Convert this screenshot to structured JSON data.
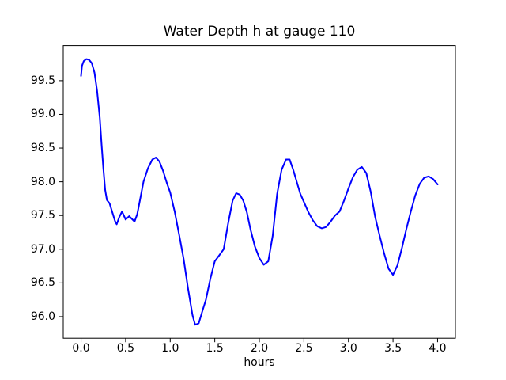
{
  "figure": {
    "background_color": "#ffffff",
    "spine_color": "#000000",
    "text_color": "#000000"
  },
  "chart_data": {
    "type": "line",
    "title": "Water Depth h at gauge 110",
    "xlabel": "hours",
    "ylabel": "",
    "grid": false,
    "legend": null,
    "xlim": [
      -0.2,
      4.2
    ],
    "ylim": [
      95.68,
      100.02
    ],
    "xticks": [
      0.0,
      0.5,
      1.0,
      1.5,
      2.0,
      2.5,
      3.0,
      3.5,
      4.0
    ],
    "yticks": [
      96.0,
      96.5,
      97.0,
      97.5,
      98.0,
      98.5,
      99.0,
      99.5
    ],
    "series": [
      {
        "name": "water-depth",
        "color": "#0000ff",
        "x": [
          0.0,
          0.01,
          0.03,
          0.06,
          0.09,
          0.12,
          0.15,
          0.18,
          0.21,
          0.23,
          0.25,
          0.27,
          0.29,
          0.32,
          0.35,
          0.38,
          0.4,
          0.43,
          0.46,
          0.5,
          0.54,
          0.57,
          0.6,
          0.63,
          0.66,
          0.7,
          0.75,
          0.8,
          0.84,
          0.88,
          0.92,
          0.96,
          1.0,
          1.05,
          1.1,
          1.15,
          1.2,
          1.25,
          1.28,
          1.32,
          1.36,
          1.4,
          1.45,
          1.5,
          1.55,
          1.6,
          1.65,
          1.7,
          1.74,
          1.78,
          1.82,
          1.86,
          1.9,
          1.95,
          2.0,
          2.05,
          2.1,
          2.15,
          2.2,
          2.25,
          2.3,
          2.34,
          2.38,
          2.42,
          2.46,
          2.5,
          2.55,
          2.6,
          2.65,
          2.7,
          2.75,
          2.8,
          2.85,
          2.9,
          2.95,
          3.0,
          3.05,
          3.1,
          3.15,
          3.2,
          3.25,
          3.3,
          3.35,
          3.4,
          3.45,
          3.5,
          3.55,
          3.6,
          3.65,
          3.7,
          3.75,
          3.8,
          3.85,
          3.9,
          3.95,
          4.0
        ],
        "y": [
          99.57,
          99.72,
          99.79,
          99.82,
          99.81,
          99.76,
          99.62,
          99.35,
          98.95,
          98.55,
          98.2,
          97.88,
          97.73,
          97.68,
          97.55,
          97.42,
          97.37,
          97.48,
          97.56,
          97.44,
          97.49,
          97.45,
          97.41,
          97.52,
          97.72,
          98.0,
          98.2,
          98.33,
          98.36,
          98.3,
          98.16,
          97.99,
          97.84,
          97.56,
          97.22,
          96.86,
          96.42,
          96.02,
          95.88,
          95.9,
          96.08,
          96.25,
          96.56,
          96.82,
          96.91,
          97.0,
          97.38,
          97.72,
          97.83,
          97.81,
          97.72,
          97.55,
          97.3,
          97.04,
          96.87,
          96.77,
          96.82,
          97.2,
          97.82,
          98.18,
          98.33,
          98.33,
          98.18,
          98.0,
          97.82,
          97.7,
          97.55,
          97.43,
          97.34,
          97.31,
          97.33,
          97.41,
          97.5,
          97.56,
          97.72,
          97.9,
          98.07,
          98.18,
          98.22,
          98.13,
          97.85,
          97.48,
          97.2,
          96.94,
          96.71,
          96.62,
          96.76,
          97.02,
          97.3,
          97.56,
          97.8,
          97.97,
          98.06,
          98.08,
          98.04,
          97.96
        ]
      }
    ]
  }
}
